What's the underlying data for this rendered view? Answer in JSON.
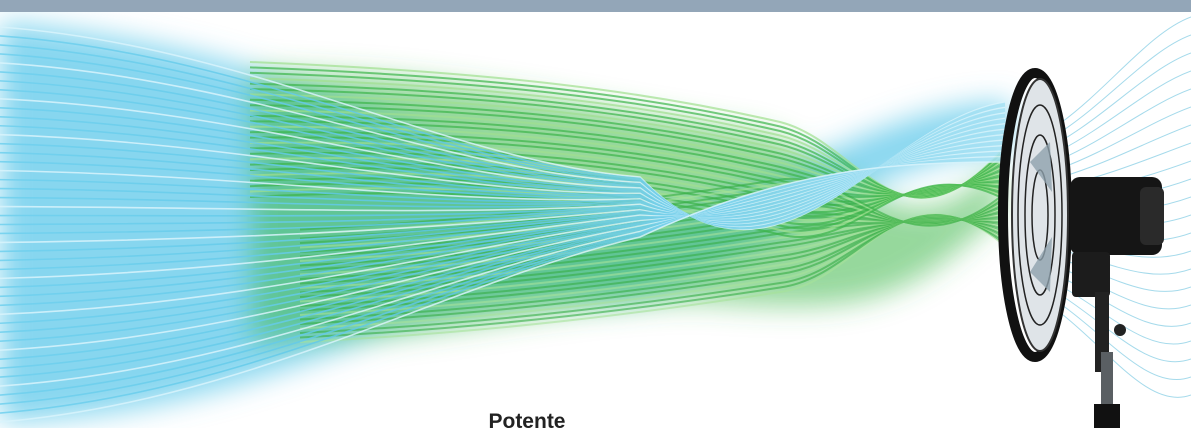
{
  "caption": "Potente"
}
